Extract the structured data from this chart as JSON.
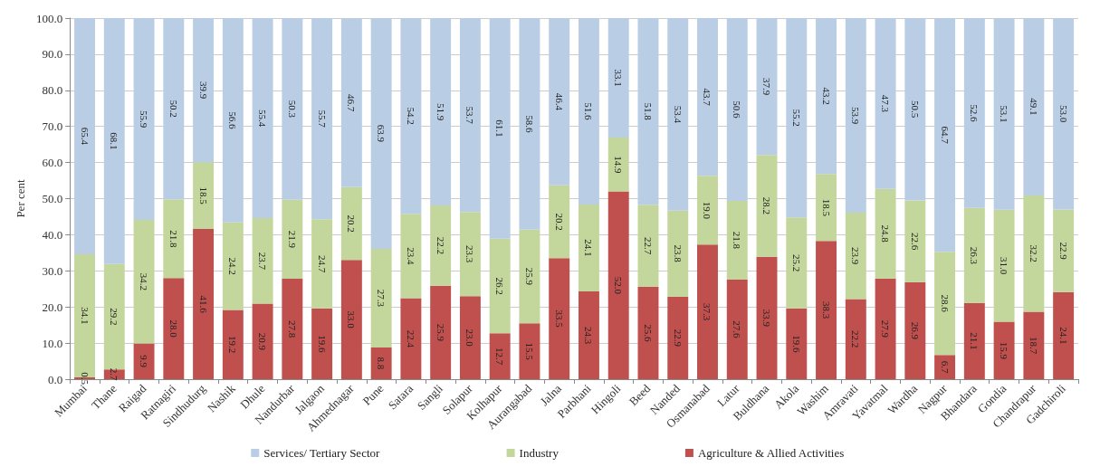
{
  "chart_data": {
    "type": "bar",
    "stacked": true,
    "ylabel": "Per cent",
    "categories": [
      "Mumbai",
      "Thane",
      "Raigad",
      "Ratnagiri",
      "Sindhudurg",
      "Nashik",
      "Dhule",
      "Nandurbar",
      "Jalgaon",
      "Ahmednagar",
      "Pune",
      "Satara",
      "Sangli",
      "Solapur",
      "Kolhapur",
      "Aurangabad",
      "Jalna",
      "Parbhani",
      "Hingoli",
      "Beed",
      "Nanded",
      "Osmanabad",
      "Latur",
      "Buldhana",
      "Akola",
      "Washim",
      "Amravati",
      "Yavatmal",
      "Wardha",
      "Nagpur",
      "Bhandara",
      "Gondia",
      "Chandrapur",
      "Gadchiroli"
    ],
    "series": [
      {
        "name": "Agriculture & Allied Activities",
        "color": "#c0504d",
        "values": [
          0.5,
          2.7,
          9.9,
          28.0,
          41.6,
          19.2,
          20.9,
          27.8,
          19.6,
          33.0,
          8.8,
          22.4,
          25.9,
          23.0,
          12.7,
          15.5,
          33.5,
          24.3,
          52.0,
          25.6,
          22.9,
          37.3,
          27.6,
          33.9,
          19.6,
          38.3,
          22.2,
          27.9,
          26.9,
          6.7,
          21.1,
          15.9,
          18.7,
          24.1
        ],
        "value_labels": [
          "0.5",
          "2.7",
          "9.9",
          "28.0",
          "41.6",
          "19.2",
          "20.9",
          "27.8",
          "19.6",
          "33.0",
          "8.8",
          "22.4",
          "25.9",
          "23.0",
          "12.7",
          "15.5",
          "33.5",
          "24.3",
          "52.0",
          "25.6",
          "22.9",
          "37.3",
          "27.6",
          "33.9",
          "19.6",
          "38.3",
          "22.2",
          "27.9",
          "26.9",
          "6.7",
          "21.1",
          "15.9",
          "18.7",
          "24.1"
        ]
      },
      {
        "name": "Industry",
        "color": "#c3d69b",
        "values": [
          34.1,
          29.2,
          34.2,
          21.8,
          18.5,
          24.2,
          23.7,
          21.9,
          24.7,
          20.2,
          27.3,
          23.4,
          22.2,
          23.3,
          26.2,
          25.9,
          20.2,
          24.1,
          14.9,
          22.7,
          23.8,
          19.0,
          21.8,
          28.2,
          25.2,
          18.5,
          23.9,
          24.8,
          22.6,
          28.6,
          26.3,
          31.0,
          32.2,
          22.9
        ],
        "value_labels": [
          "34.1",
          "29.2",
          "34.2",
          "21.8",
          "18.5",
          "24.2",
          "23.7",
          "21.9",
          "24.7",
          "20.2",
          "27.3",
          "23.4",
          "22.2",
          "23.3",
          "26.2",
          "25.9",
          "20.2",
          "24.1",
          "14.9",
          "22.7",
          "23.8",
          "19.0",
          "21.8",
          "28.2",
          "25.2",
          "18.5",
          "23.9",
          "24.8",
          "22.6",
          "28.6",
          "26.3",
          "31.0",
          "32.2",
          "22.9"
        ]
      },
      {
        "name": "Services/ Tertiary Sector",
        "color": "#b9cde5",
        "values": [
          65.4,
          68.1,
          55.9,
          50.2,
          39.9,
          56.6,
          55.4,
          50.3,
          55.7,
          46.7,
          63.9,
          54.2,
          51.9,
          53.7,
          61.1,
          58.6,
          46.4,
          51.6,
          33.1,
          51.8,
          53.4,
          43.7,
          50.6,
          37.9,
          55.2,
          43.2,
          53.9,
          47.3,
          50.5,
          64.7,
          52.6,
          53.1,
          49.1,
          53.0
        ],
        "value_labels": [
          "65.4",
          "68.1",
          "55.9",
          "50.2",
          "39.9",
          "56.6",
          "55.4",
          "50.3",
          "55.7",
          "46.7",
          "63.9",
          "54.2",
          "51.9",
          "53.7",
          "61.1",
          "58.6",
          "46.4",
          "51.6",
          "33.1",
          "51.8",
          "53.4",
          "43.7",
          "50.6",
          "37.9",
          "55.2",
          "43.2",
          "53.9",
          "47.3",
          "50.5",
          "64.7",
          "52.6",
          "53.1",
          "49.1",
          "53.0"
        ]
      }
    ],
    "ylim": [
      0,
      100
    ],
    "yticks": [
      {
        "value": 0,
        "label": "0.0"
      },
      {
        "value": 10,
        "label": "10.0"
      },
      {
        "value": 20,
        "label": "20.0"
      },
      {
        "value": 30,
        "label": "30.0"
      },
      {
        "value": 40,
        "label": "40.0"
      },
      {
        "value": 50,
        "label": "50.0"
      },
      {
        "value": 60,
        "label": "60.0"
      },
      {
        "value": 70,
        "label": "70.0"
      },
      {
        "value": 80,
        "label": "80.0"
      },
      {
        "value": 90,
        "label": "90.0"
      },
      {
        "value": 100,
        "label": "100.0"
      }
    ],
    "grid": true,
    "legend": "bottom"
  }
}
